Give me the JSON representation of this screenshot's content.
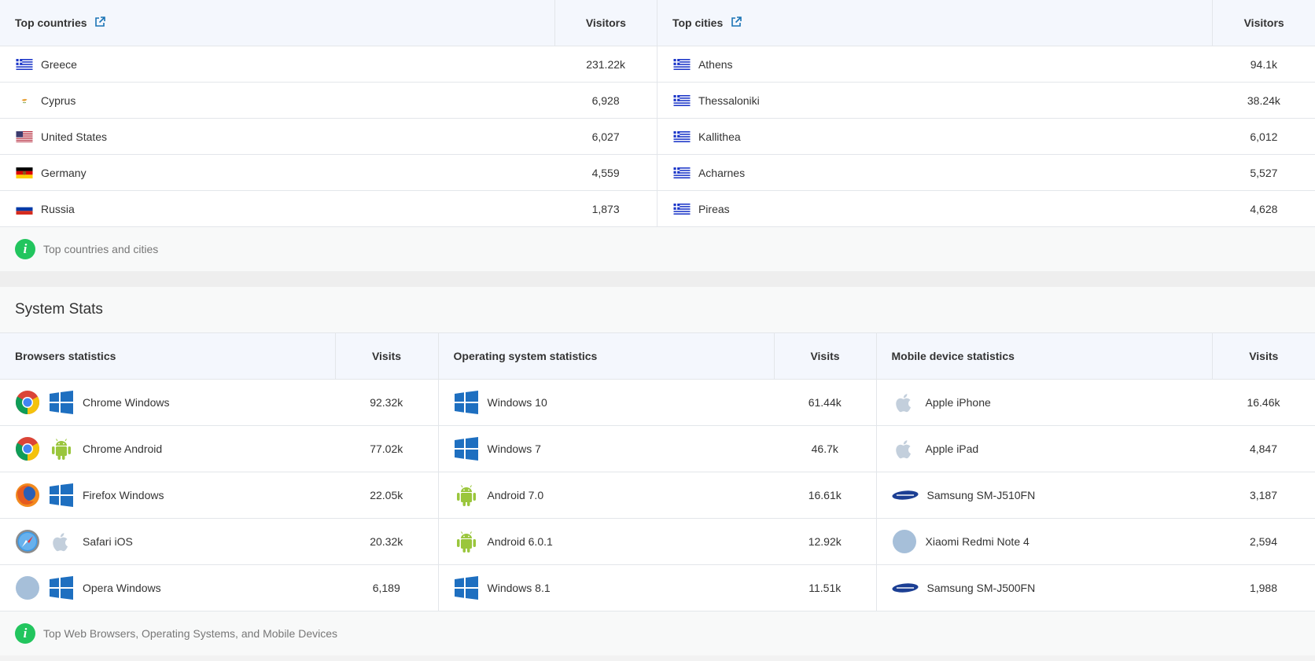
{
  "geo": {
    "countries": {
      "header": "Top countries",
      "visitors_label": "Visitors",
      "rows": [
        {
          "name": "Greece",
          "value": "231.22k",
          "flag": "greece-flag-icon"
        },
        {
          "name": "Cyprus",
          "value": "6,928",
          "flag": "cyprus-flag-icon"
        },
        {
          "name": "United States",
          "value": "6,027",
          "flag": "usa-flag-icon"
        },
        {
          "name": "Germany",
          "value": "4,559",
          "flag": "germany-flag-icon"
        },
        {
          "name": "Russia",
          "value": "1,873",
          "flag": "russia-flag-icon"
        }
      ]
    },
    "cities": {
      "header": "Top cities",
      "visitors_label": "Visitors",
      "rows": [
        {
          "name": "Athens",
          "value": "94.1k"
        },
        {
          "name": "Thessaloniki",
          "value": "38.24k"
        },
        {
          "name": "Kallithea",
          "value": "6,012"
        },
        {
          "name": "Acharnes",
          "value": "5,527"
        },
        {
          "name": "Pireas",
          "value": "4,628"
        }
      ]
    },
    "info": "Top countries and cities"
  },
  "system": {
    "title": "System Stats",
    "browsers": {
      "header": "Browsers statistics",
      "visits_label": "Visits",
      "rows": [
        {
          "name": "Chrome Windows",
          "value": "92.32k"
        },
        {
          "name": "Chrome Android",
          "value": "77.02k"
        },
        {
          "name": "Firefox Windows",
          "value": "22.05k"
        },
        {
          "name": "Safari iOS",
          "value": "20.32k"
        },
        {
          "name": "Opera Windows",
          "value": "6,189"
        }
      ]
    },
    "os": {
      "header": "Operating system statistics",
      "visits_label": "Visits",
      "rows": [
        {
          "name": "Windows 10",
          "value": "61.44k"
        },
        {
          "name": "Windows 7",
          "value": "46.7k"
        },
        {
          "name": "Android 7.0",
          "value": "16.61k"
        },
        {
          "name": "Android 6.0.1",
          "value": "12.92k"
        },
        {
          "name": "Windows 8.1",
          "value": "11.51k"
        }
      ]
    },
    "devices": {
      "header": "Mobile device statistics",
      "visits_label": "Visits",
      "rows": [
        {
          "name": "Apple iPhone",
          "value": "16.46k"
        },
        {
          "name": "Apple iPad",
          "value": "4,847"
        },
        {
          "name": "Samsung SM-J510FN",
          "value": "3,187"
        },
        {
          "name": "Xiaomi Redmi Note 4",
          "value": "2,594"
        },
        {
          "name": "Samsung SM-J500FN",
          "value": "1,988"
        }
      ]
    },
    "info": "Top Web Browsers, Operating Systems, and Mobile Devices"
  },
  "colors": {
    "accent": "#1a73b5",
    "info_green": "#22c55e",
    "header_bg": "#f4f7fd",
    "windows_blue": "#1e6fc0",
    "android_green": "#9ac63c",
    "samsung_blue": "#1c3f94"
  }
}
